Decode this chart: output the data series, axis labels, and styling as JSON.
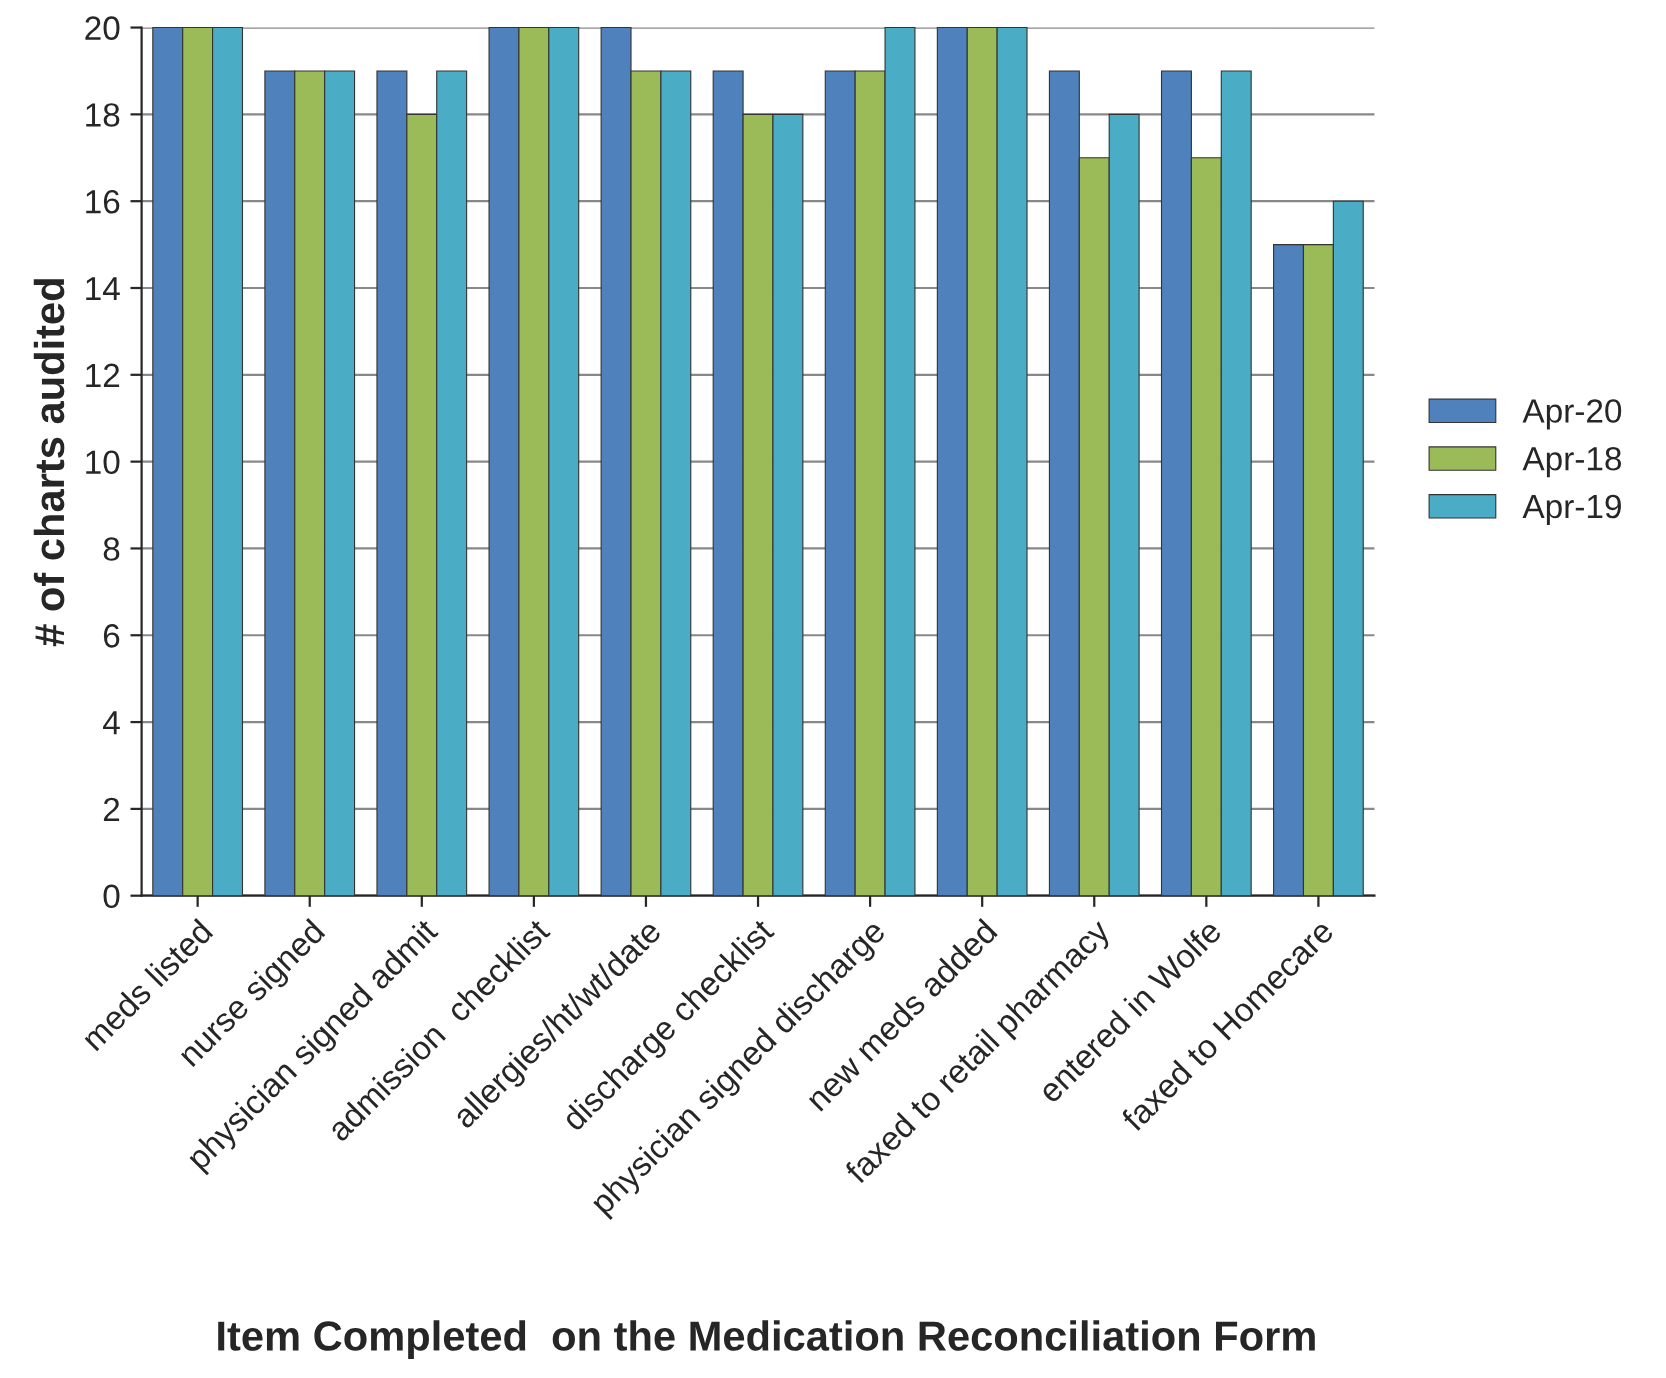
{
  "chart_data": {
    "type": "bar",
    "xlabel": "Item Completed  on the Medication Reconciliation Form",
    "ylabel": "# of charts audited",
    "categories": [
      "meds listed",
      "nurse signed",
      "physician signed admit",
      "admission  checklist",
      "allergies/ht/wt/date",
      "discharge checklist",
      "physician signed discharge",
      "new meds added",
      "faxed to retail pharmacy",
      "entered in Wolfe",
      "faxed to Homecare"
    ],
    "series": [
      {
        "name": "Apr-20",
        "color": "#4f81bd",
        "values": [
          20,
          19,
          19,
          20,
          20,
          19,
          19,
          20,
          19,
          19,
          15
        ]
      },
      {
        "name": "Apr-18",
        "color": "#9bbb59",
        "values": [
          20,
          19,
          18,
          20,
          19,
          18,
          19,
          20,
          17,
          17,
          15
        ]
      },
      {
        "name": "Apr-19",
        "color": "#4bacc6",
        "values": [
          20,
          19,
          19,
          20,
          19,
          18,
          20,
          20,
          18,
          19,
          16
        ]
      }
    ],
    "ylim": [
      0,
      20
    ],
    "yticks": [
      0,
      2,
      4,
      6,
      8,
      10,
      12,
      14,
      16,
      18,
      20
    ],
    "grid": "y",
    "legend": "right"
  }
}
